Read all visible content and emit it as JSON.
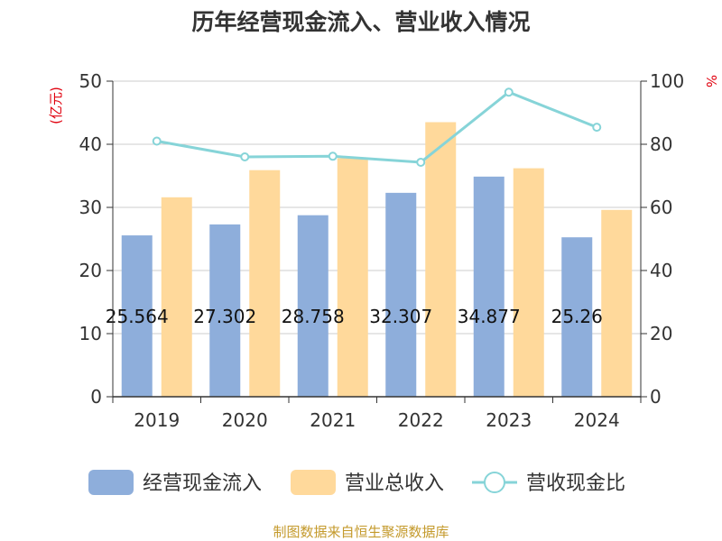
{
  "chart_data": {
    "type": "bar",
    "title": "历年经营现金流入、营业收入情况",
    "ylabel_left": "(亿元)",
    "ylabel_right": "%",
    "categories": [
      "2019",
      "2020",
      "2021",
      "2022",
      "2023",
      "2024"
    ],
    "ylim_left": [
      0,
      50
    ],
    "yticks_left": [
      0,
      10,
      20,
      30,
      40,
      50
    ],
    "ylim_right": [
      0,
      100
    ],
    "yticks_right": [
      0,
      20,
      40,
      60,
      80,
      100
    ],
    "grid": true,
    "legend_position": "bottom",
    "series": [
      {
        "name": "经营现金流入",
        "kind": "bar",
        "axis": "left",
        "color": "#8eaedb",
        "values": [
          25.564,
          27.302,
          28.758,
          32.307,
          34.877,
          25.26
        ],
        "labels": [
          "25.564",
          "27.302",
          "28.758",
          "32.307",
          "34.877",
          "25.26"
        ]
      },
      {
        "name": "营业总收入",
        "kind": "bar",
        "axis": "left",
        "color": "#ffd99b",
        "values": [
          31.6,
          35.9,
          37.8,
          43.5,
          36.2,
          29.6
        ]
      },
      {
        "name": "营收现金比",
        "kind": "line",
        "axis": "right",
        "color": "#86d4d8",
        "values": [
          81.0,
          76.0,
          76.2,
          74.3,
          96.5,
          85.4
        ]
      }
    ]
  },
  "footer": {
    "source": "制图数据来自恒生聚源数据库"
  }
}
